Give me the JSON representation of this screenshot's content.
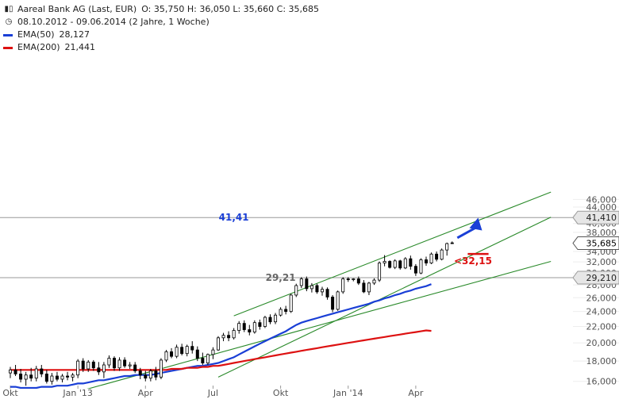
{
  "header": {
    "instrument": "Aareal Bank AG (Last, EUR)",
    "ohlc": "O: 35,750  H: 36,050  L: 35,660  C: 35,685",
    "range": "08.10.2012 - 09.06.2014 (2 Jahre, 1 Woche)"
  },
  "colors": {
    "ema50": "#1a3fd6",
    "ema200": "#dd1111",
    "channel": "#2a8a2a",
    "arrow": "#1a3fd6",
    "candle": "#000000",
    "axis_text": "#555555"
  },
  "chart_data": {
    "type": "candlestick",
    "title": "Aareal Bank AG (Last, EUR)",
    "ylim": [
      15.5,
      46.5
    ],
    "y_scale": "log",
    "y_ticks": [
      16,
      18,
      20,
      22,
      24,
      26,
      28,
      30,
      32,
      34,
      36,
      38,
      40,
      42,
      44,
      46
    ],
    "y_tick_labels": [
      "16,000",
      "18,000",
      "20,000",
      "22,000",
      "24,000",
      "26,000",
      "28,000",
      "30,000",
      "32,000",
      "34,000",
      "36,000",
      "38,000",
      "40,000",
      "42,000",
      "44,000",
      "46,000"
    ],
    "x_tick_labels": [
      "Okt",
      "Jan '13",
      "Apr",
      "Jul",
      "Okt",
      "Jan '14",
      "Apr"
    ],
    "weeks": 88,
    "x_tick_weeks": [
      0,
      13,
      26,
      39,
      52,
      65,
      78
    ],
    "candles": [
      {
        "o": 16.8,
        "h": 17.4,
        "l": 16.3,
        "c": 17.1
      },
      {
        "o": 17.1,
        "h": 17.6,
        "l": 16.5,
        "c": 16.7
      },
      {
        "o": 16.7,
        "h": 17.2,
        "l": 15.9,
        "c": 16.2
      },
      {
        "o": 16.2,
        "h": 16.9,
        "l": 15.6,
        "c": 16.6
      },
      {
        "o": 16.6,
        "h": 17.3,
        "l": 16.0,
        "c": 16.3
      },
      {
        "o": 16.3,
        "h": 17.5,
        "l": 16.0,
        "c": 17.2
      },
      {
        "o": 17.2,
        "h": 17.6,
        "l": 16.4,
        "c": 16.7
      },
      {
        "o": 16.7,
        "h": 17.1,
        "l": 15.8,
        "c": 16.0
      },
      {
        "o": 16.0,
        "h": 16.8,
        "l": 15.7,
        "c": 16.5
      },
      {
        "o": 16.5,
        "h": 16.9,
        "l": 16.0,
        "c": 16.2
      },
      {
        "o": 16.2,
        "h": 16.7,
        "l": 15.9,
        "c": 16.5
      },
      {
        "o": 16.5,
        "h": 16.9,
        "l": 16.1,
        "c": 16.4
      },
      {
        "o": 16.4,
        "h": 16.8,
        "l": 16.0,
        "c": 16.6
      },
      {
        "o": 16.6,
        "h": 18.2,
        "l": 16.3,
        "c": 18.0
      },
      {
        "o": 18.0,
        "h": 18.3,
        "l": 16.9,
        "c": 17.2
      },
      {
        "o": 17.2,
        "h": 18.1,
        "l": 16.9,
        "c": 17.9
      },
      {
        "o": 17.9,
        "h": 18.1,
        "l": 17.0,
        "c": 17.3
      },
      {
        "o": 17.3,
        "h": 17.9,
        "l": 16.6,
        "c": 16.9
      },
      {
        "o": 16.9,
        "h": 17.9,
        "l": 16.3,
        "c": 17.6
      },
      {
        "o": 17.6,
        "h": 18.6,
        "l": 17.3,
        "c": 18.3
      },
      {
        "o": 18.3,
        "h": 18.5,
        "l": 17.0,
        "c": 17.3
      },
      {
        "o": 17.3,
        "h": 18.4,
        "l": 17.0,
        "c": 18.1
      },
      {
        "o": 18.1,
        "h": 18.4,
        "l": 17.3,
        "c": 17.5
      },
      {
        "o": 17.5,
        "h": 17.9,
        "l": 17.2,
        "c": 17.6
      },
      {
        "o": 17.6,
        "h": 17.9,
        "l": 16.8,
        "c": 17.0
      },
      {
        "o": 17.0,
        "h": 17.3,
        "l": 16.2,
        "c": 16.6
      },
      {
        "o": 16.6,
        "h": 17.0,
        "l": 16.0,
        "c": 16.3
      },
      {
        "o": 16.3,
        "h": 17.2,
        "l": 16.0,
        "c": 17.0
      },
      {
        "o": 17.0,
        "h": 17.4,
        "l": 16.1,
        "c": 16.4
      },
      {
        "o": 16.4,
        "h": 18.3,
        "l": 16.2,
        "c": 18.1
      },
      {
        "o": 18.1,
        "h": 19.2,
        "l": 17.9,
        "c": 19.0
      },
      {
        "o": 19.0,
        "h": 19.4,
        "l": 18.3,
        "c": 18.5
      },
      {
        "o": 18.5,
        "h": 19.8,
        "l": 18.3,
        "c": 19.5
      },
      {
        "o": 19.5,
        "h": 19.9,
        "l": 18.6,
        "c": 18.8
      },
      {
        "o": 18.8,
        "h": 19.8,
        "l": 18.5,
        "c": 19.6
      },
      {
        "o": 19.6,
        "h": 20.2,
        "l": 18.8,
        "c": 19.2
      },
      {
        "o": 19.2,
        "h": 19.6,
        "l": 18.0,
        "c": 18.3
      },
      {
        "o": 18.3,
        "h": 18.9,
        "l": 17.6,
        "c": 17.8
      },
      {
        "o": 17.8,
        "h": 18.8,
        "l": 17.6,
        "c": 18.7
      },
      {
        "o": 18.7,
        "h": 19.5,
        "l": 18.2,
        "c": 19.2
      },
      {
        "o": 19.2,
        "h": 20.8,
        "l": 19.1,
        "c": 20.6
      },
      {
        "o": 20.6,
        "h": 21.2,
        "l": 20.2,
        "c": 20.9
      },
      {
        "o": 20.9,
        "h": 21.4,
        "l": 20.2,
        "c": 20.6
      },
      {
        "o": 20.6,
        "h": 21.8,
        "l": 20.4,
        "c": 21.5
      },
      {
        "o": 21.5,
        "h": 22.7,
        "l": 21.1,
        "c": 22.4
      },
      {
        "o": 22.4,
        "h": 22.8,
        "l": 21.3,
        "c": 21.6
      },
      {
        "o": 21.6,
        "h": 22.2,
        "l": 20.9,
        "c": 21.3
      },
      {
        "o": 21.3,
        "h": 22.8,
        "l": 21.1,
        "c": 22.5
      },
      {
        "o": 22.5,
        "h": 22.9,
        "l": 21.6,
        "c": 22.0
      },
      {
        "o": 22.0,
        "h": 23.4,
        "l": 21.8,
        "c": 23.2
      },
      {
        "o": 23.2,
        "h": 23.6,
        "l": 22.3,
        "c": 22.6
      },
      {
        "o": 22.6,
        "h": 23.8,
        "l": 22.3,
        "c": 23.5
      },
      {
        "o": 23.5,
        "h": 24.6,
        "l": 23.3,
        "c": 24.3
      },
      {
        "o": 24.3,
        "h": 24.8,
        "l": 23.6,
        "c": 24.0
      },
      {
        "o": 24.0,
        "h": 26.6,
        "l": 23.8,
        "c": 26.4
      },
      {
        "o": 26.4,
        "h": 28.2,
        "l": 26.1,
        "c": 27.9
      },
      {
        "o": 27.9,
        "h": 29.3,
        "l": 27.5,
        "c": 29.0
      },
      {
        "o": 29.0,
        "h": 29.4,
        "l": 27.0,
        "c": 27.4
      },
      {
        "o": 27.4,
        "h": 28.3,
        "l": 26.8,
        "c": 27.9
      },
      {
        "o": 27.9,
        "h": 28.2,
        "l": 26.6,
        "c": 26.9
      },
      {
        "o": 26.9,
        "h": 27.7,
        "l": 26.3,
        "c": 27.3
      },
      {
        "o": 27.3,
        "h": 27.6,
        "l": 25.7,
        "c": 26.1
      },
      {
        "o": 26.1,
        "h": 26.4,
        "l": 23.9,
        "c": 24.3
      },
      {
        "o": 24.3,
        "h": 27.1,
        "l": 24.1,
        "c": 26.9
      },
      {
        "o": 26.9,
        "h": 29.3,
        "l": 26.6,
        "c": 29.0
      },
      {
        "o": 29.0,
        "h": 29.3,
        "l": 28.5,
        "c": 28.9
      },
      {
        "o": 28.9,
        "h": 29.1,
        "l": 28.6,
        "c": 29.0
      },
      {
        "o": 29.0,
        "h": 29.4,
        "l": 28.0,
        "c": 28.3
      },
      {
        "o": 28.3,
        "h": 28.8,
        "l": 26.7,
        "c": 26.9
      },
      {
        "o": 26.9,
        "h": 28.5,
        "l": 26.4,
        "c": 28.3
      },
      {
        "o": 28.3,
        "h": 29.1,
        "l": 28.0,
        "c": 28.8
      },
      {
        "o": 28.8,
        "h": 32.1,
        "l": 28.5,
        "c": 31.8
      },
      {
        "o": 31.8,
        "h": 33.3,
        "l": 31.2,
        "c": 32.1
      },
      {
        "o": 32.1,
        "h": 32.3,
        "l": 30.8,
        "c": 31.0
      },
      {
        "o": 31.0,
        "h": 32.5,
        "l": 30.7,
        "c": 32.2
      },
      {
        "o": 32.2,
        "h": 32.4,
        "l": 30.6,
        "c": 30.9
      },
      {
        "o": 30.9,
        "h": 32.9,
        "l": 30.7,
        "c": 32.6
      },
      {
        "o": 32.6,
        "h": 33.2,
        "l": 30.6,
        "c": 31.2
      },
      {
        "o": 31.2,
        "h": 31.6,
        "l": 29.5,
        "c": 30.0
      },
      {
        "o": 30.0,
        "h": 32.7,
        "l": 29.8,
        "c": 32.4
      },
      {
        "o": 32.4,
        "h": 33.0,
        "l": 31.3,
        "c": 31.8
      },
      {
        "o": 31.8,
        "h": 33.8,
        "l": 31.6,
        "c": 33.5
      },
      {
        "o": 33.5,
        "h": 34.0,
        "l": 32.1,
        "c": 32.5
      },
      {
        "o": 32.5,
        "h": 34.6,
        "l": 32.3,
        "c": 34.3
      },
      {
        "o": 34.3,
        "h": 35.8,
        "l": 33.2,
        "c": 35.6
      },
      {
        "o": 35.75,
        "h": 36.05,
        "l": 35.66,
        "c": 35.685
      }
    ],
    "ema_series": [
      {
        "name": "EMA(50)",
        "last": 28.127,
        "values": [
          15.5,
          15.5,
          15.4,
          15.4,
          15.4,
          15.4,
          15.5,
          15.5,
          15.5,
          15.6,
          15.6,
          15.6,
          15.7,
          15.8,
          15.8,
          15.9,
          16.0,
          16.1,
          16.1,
          16.2,
          16.3,
          16.4,
          16.5,
          16.5,
          16.6,
          16.6,
          16.6,
          16.6,
          16.7,
          16.8,
          16.9,
          17.0,
          17.1,
          17.2,
          17.3,
          17.4,
          17.5,
          17.5,
          17.6,
          17.7,
          17.8,
          18.0,
          18.2,
          18.4,
          18.7,
          19.0,
          19.3,
          19.6,
          19.9,
          20.2,
          20.5,
          20.8,
          21.1,
          21.4,
          21.8,
          22.2,
          22.5,
          22.7,
          22.9,
          23.1,
          23.3,
          23.5,
          23.7,
          23.9,
          24.1,
          24.3,
          24.5,
          24.7,
          24.9,
          25.1,
          25.4,
          25.6,
          25.9,
          26.1,
          26.4,
          26.6,
          26.9,
          27.1,
          27.4,
          27.6,
          27.8,
          28.127
        ]
      },
      {
        "name": "EMA(200)",
        "last": 21.441,
        "values": [
          17.1,
          17.1,
          17.1,
          17.1,
          17.1,
          17.1,
          17.1,
          17.1,
          17.1,
          17.1,
          17.1,
          17.1,
          17.1,
          17.1,
          17.1,
          17.1,
          17.1,
          17.1,
          17.1,
          17.1,
          17.1,
          17.1,
          17.1,
          17.1,
          17.1,
          17.1,
          17.1,
          17.1,
          17.1,
          17.1,
          17.1,
          17.2,
          17.2,
          17.2,
          17.3,
          17.3,
          17.3,
          17.4,
          17.4,
          17.5,
          17.5,
          17.6,
          17.7,
          17.8,
          17.9,
          18.0,
          18.1,
          18.2,
          18.3,
          18.4,
          18.5,
          18.6,
          18.7,
          18.8,
          18.9,
          19.0,
          19.1,
          19.2,
          19.3,
          19.4,
          19.5,
          19.6,
          19.7,
          19.8,
          19.9,
          20.0,
          20.1,
          20.2,
          20.3,
          20.4,
          20.5,
          20.6,
          20.7,
          20.8,
          20.9,
          21.0,
          21.1,
          21.2,
          21.3,
          21.4,
          21.5,
          21.441
        ]
      }
    ],
    "channel_lines": [
      {
        "from": [
          43,
          23.4
        ],
        "to": [
          104,
          48.0
        ]
      },
      {
        "from": [
          40,
          16.4
        ],
        "to": [
          104,
          41.5
        ]
      },
      {
        "from": [
          10,
          14.7
        ],
        "to": [
          104,
          32.1
        ]
      }
    ],
    "horizontal_levels": [
      {
        "value": 41.41,
        "label": "41,410"
      },
      {
        "value": 29.21,
        "label": "29,210"
      }
    ],
    "last_price_label": "35,685",
    "last_price_value": 35.685,
    "annotations": [
      {
        "text": "41,41",
        "week": 43,
        "value": 41.41,
        "color": "#1a3fd6"
      },
      {
        "text": "29,21",
        "week": 52,
        "value": 29.21,
        "color": "#666666"
      },
      {
        "text": "<32,15",
        "week": 89,
        "value": 32.15,
        "color": "#dd1111"
      }
    ],
    "stop_line": {
      "from_week": 88,
      "to_week": 92,
      "value": 32.15
    },
    "arrow": {
      "from_week": 86,
      "from_value": 36.8,
      "to_week": 90,
      "to_value": 40.6
    }
  }
}
